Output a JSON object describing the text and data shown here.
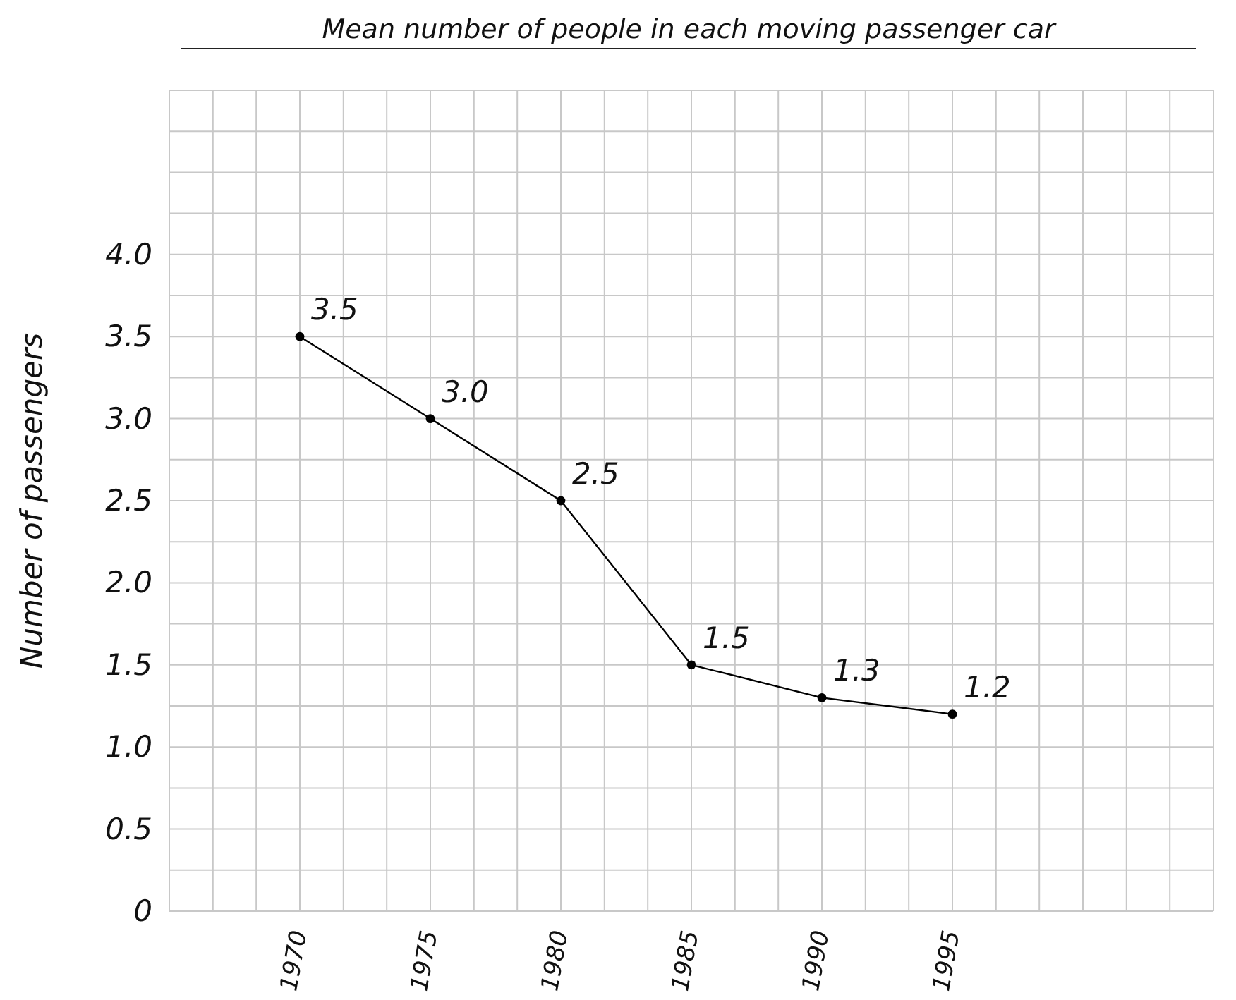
{
  "chart_data": {
    "type": "line",
    "title": "Mean number of people in each moving passenger car",
    "ylabel": "Number of passengers",
    "x": [
      1970,
      1975,
      1980,
      1985,
      1990,
      1995
    ],
    "series": [
      {
        "color": "#000000",
        "values": [
          3.5,
          3.0,
          2.5,
          1.5,
          1.3,
          1.2
        ],
        "value_labels": [
          "3.5",
          "3.0",
          "2.5",
          "1.5",
          "1.3",
          "1.2"
        ]
      }
    ],
    "xlim": [
      1965,
      2005
    ],
    "xticks": [
      {
        "value": 1965,
        "label": null
      },
      {
        "value": 1966.67,
        "label": null
      },
      {
        "value": 1968.33,
        "label": null
      },
      1970,
      {
        "value": 1971.67,
        "label": null
      },
      {
        "value": 1973.33,
        "label": null
      },
      1975,
      {
        "value": 1976.67,
        "label": null
      },
      {
        "value": 1978.33,
        "label": null
      },
      1980,
      {
        "value": 1981.67,
        "label": null
      },
      {
        "value": 1983.33,
        "label": null
      },
      1985,
      {
        "value": 1986.67,
        "label": null
      },
      {
        "value": 1988.33,
        "label": null
      },
      1990,
      {
        "value": 1991.67,
        "label": null
      },
      {
        "value": 1993.33,
        "label": null
      },
      1995,
      {
        "value": 1996.67,
        "label": null
      },
      {
        "value": 1998.33,
        "label": null
      },
      {
        "value": 2000,
        "label": null
      },
      {
        "value": 2001.67,
        "label": null
      },
      {
        "value": 2003.33,
        "label": null
      },
      {
        "value": 2005,
        "label": null
      }
    ],
    "ylim": [
      0,
      5
    ],
    "yticks": [
      {
        "value": 0,
        "label": "0"
      },
      {
        "value": 0.25,
        "label": null
      },
      {
        "value": 0.5,
        "label": "0.5"
      },
      {
        "value": 0.75,
        "label": null
      },
      {
        "value": 1,
        "label": "1.0"
      },
      {
        "value": 1.25,
        "label": null
      },
      {
        "value": 1.5,
        "label": "1.5"
      },
      {
        "value": 1.75,
        "label": null
      },
      {
        "value": 2,
        "label": "2.0"
      },
      {
        "value": 2.25,
        "label": null
      },
      {
        "value": 2.5,
        "label": "2.5"
      },
      {
        "value": 2.75,
        "label": null
      },
      {
        "value": 3,
        "label": "3.0"
      },
      {
        "value": 3.25,
        "label": null
      },
      {
        "value": 3.5,
        "label": "3.5"
      },
      {
        "value": 3.75,
        "label": null
      },
      {
        "value": 4,
        "label": "4.0"
      },
      {
        "value": 4.25,
        "label": null
      },
      {
        "value": 4.5,
        "label": null
      },
      {
        "value": 4.75,
        "label": null
      },
      {
        "value": 5,
        "label": null
      }
    ],
    "grid": true,
    "legend": false,
    "marker": "circle",
    "line_style": "solid"
  }
}
